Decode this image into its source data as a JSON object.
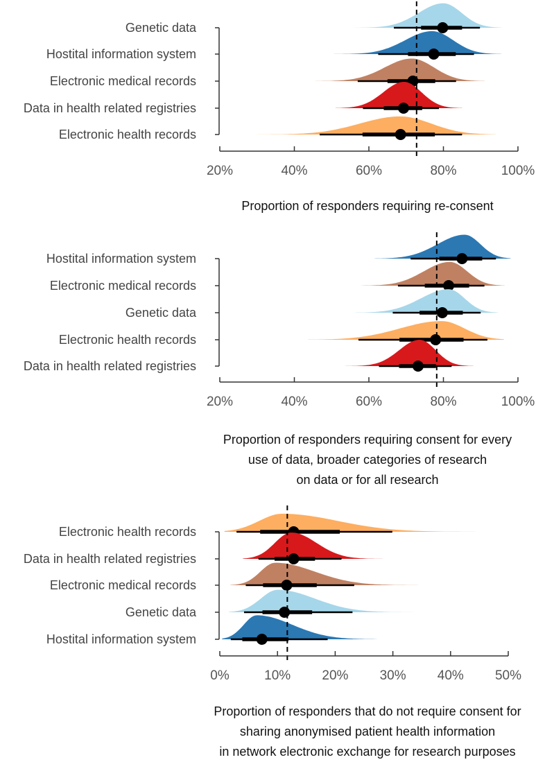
{
  "colors": {
    "Genetic data": "#a6d6e9",
    "Hostital information system": "#2b78b3",
    "Electronic medical records": "#c08162",
    "Data in health related registries": "#d7191c",
    "Electronic health records": "#fdae61"
  },
  "chart_data": [
    {
      "type": "halfeye",
      "title": [
        "Proportion of responders requiring re-consent"
      ],
      "xlim": [
        20,
        100
      ],
      "xticks": [
        20,
        40,
        60,
        80,
        100
      ],
      "tick_suffix": "%",
      "reference_line": 72.8,
      "rows": [
        {
          "label": "Genetic data",
          "point": 79.8,
          "inner": [
            74,
            85
          ],
          "outer": [
            66.7,
            89.8
          ],
          "mode": 80,
          "range": [
            49.5,
            95.6
          ]
        },
        {
          "label": "Hostital information system",
          "point": 77.4,
          "inner": [
            70.5,
            83.3
          ],
          "outer": [
            62.5,
            88.2
          ],
          "mode": 77,
          "range": [
            46,
            95.6
          ]
        },
        {
          "label": "Electronic medical records",
          "point": 71.8,
          "inner": [
            65,
            77.8
          ],
          "outer": [
            57,
            83.4
          ],
          "mode": 71.5,
          "range": [
            43,
            91
          ]
        },
        {
          "label": "Data in health related registries",
          "point": 69.3,
          "inner": [
            64,
            74.3
          ],
          "outer": [
            58.4,
            78.8
          ],
          "mode": 69.4,
          "range": [
            51,
            85
          ]
        },
        {
          "label": "Electronic health records",
          "point": 68.5,
          "inner": [
            58.3,
            77.7
          ],
          "outer": [
            46.8,
            85
          ],
          "mode": 68.4,
          "range": [
            27.4,
            94
          ]
        }
      ]
    },
    {
      "type": "halfeye",
      "title": [
        "Proportion of responders requiring consent for every",
        "use of data, broader categories of research",
        "on data or for all research"
      ],
      "xlim": [
        20,
        100
      ],
      "xticks": [
        20,
        40,
        60,
        80,
        100
      ],
      "tick_suffix": "%",
      "reference_line": 78.2,
      "rows": [
        {
          "label": "Hostital information system",
          "point": 85,
          "inner": [
            78.9,
            90.4
          ],
          "outer": [
            71.2,
            94.1
          ],
          "mode": 85.7,
          "range": [
            61.5,
            98
          ]
        },
        {
          "label": "Electronic medical records",
          "point": 81.4,
          "inner": [
            75,
            86.9
          ],
          "outer": [
            67.8,
            91
          ],
          "mode": 81.7,
          "range": [
            58,
            96.4
          ]
        },
        {
          "label": "Genetic data",
          "point": 79.7,
          "inner": [
            73.6,
            85.2
          ],
          "outer": [
            66.4,
            90
          ],
          "mode": 81.4,
          "range": [
            56.3,
            94.7
          ]
        },
        {
          "label": "Electronic health records",
          "point": 77.9,
          "inner": [
            68.2,
            85.4
          ],
          "outer": [
            57.2,
            91.8
          ],
          "mode": 79.5,
          "range": [
            43.6,
            96.2
          ]
        },
        {
          "label": "Data in health related registries",
          "point": 73.2,
          "inner": [
            68.1,
            78
          ],
          "outer": [
            62.7,
            82.2
          ],
          "mode": 73.6,
          "range": [
            52.6,
            88.1
          ]
        }
      ]
    },
    {
      "type": "halfeye",
      "title": [
        "Proportion of responders that do not require consent for",
        "sharing anonymised patient health information",
        "in network electronic exchange for research purposes"
      ],
      "xlim": [
        0,
        50
      ],
      "xticks": [
        0,
        10,
        20,
        30,
        40,
        50
      ],
      "tick_suffix": "%",
      "reference_line": 11.7,
      "rows": [
        {
          "label": "Electronic health records",
          "point": 12.8,
          "inner": [
            7,
            20.8
          ],
          "outer": [
            2.9,
            29.9
          ],
          "mode": 10.8,
          "range": [
            0.8,
            51.6
          ]
        },
        {
          "label": "Data in health related registries",
          "point": 12.8,
          "inner": [
            9.5,
            16.5
          ],
          "outer": [
            6.7,
            21.1
          ],
          "mode": 12.4,
          "range": [
            4,
            34
          ]
        },
        {
          "label": "Electronic medical records",
          "point": 11.6,
          "inner": [
            7.5,
            16.8
          ],
          "outer": [
            4.5,
            23.3
          ],
          "mode": 9.6,
          "range": [
            1.8,
            35.8
          ]
        },
        {
          "label": "Genetic data",
          "point": 11.2,
          "inner": [
            7.4,
            16
          ],
          "outer": [
            4.2,
            23
          ],
          "mode": 10,
          "range": [
            1.6,
            42.4
          ]
        },
        {
          "label": "Hostital information system",
          "point": 7.3,
          "inner": [
            3.9,
            11.9
          ],
          "outer": [
            1.9,
            18.7
          ],
          "mode": 6.4,
          "range": [
            0.4,
            27.2
          ]
        }
      ]
    }
  ]
}
